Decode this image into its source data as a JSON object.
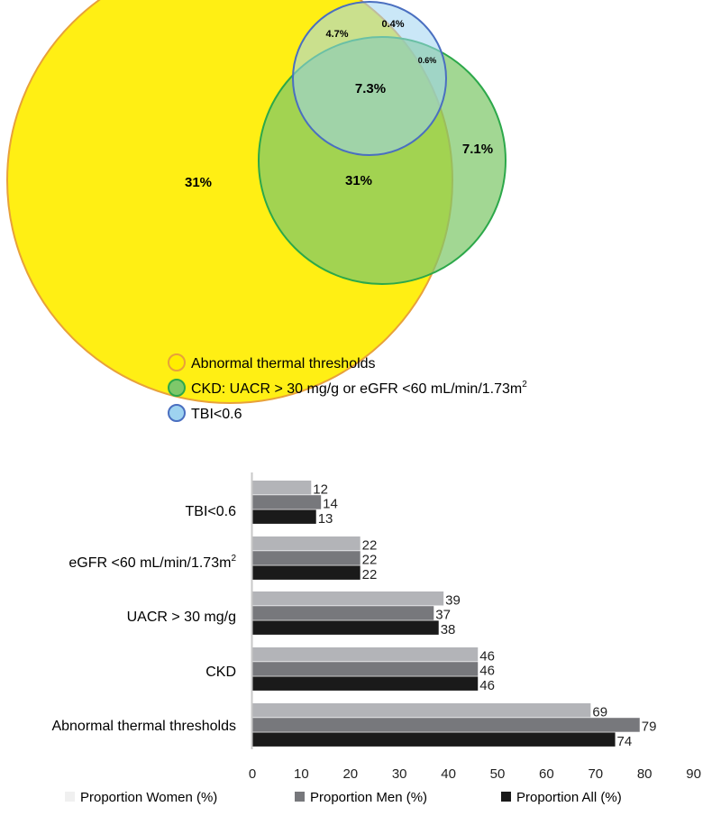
{
  "chart_data": [
    {
      "type": "venn",
      "sets": [
        {
          "name": "Abnormal thermal thresholds",
          "label": "Abnormal thermal thresholds",
          "color": "#ffee00",
          "stroke": "#e8a13a"
        },
        {
          "name": "CKD",
          "label": "CKD: UACR > 30 mg/g or eGFR <60 mL/min/1.73m",
          "label_sup": "2",
          "color": "#7ec86a",
          "stroke": "#2ca84a"
        },
        {
          "name": "TBI<0.6",
          "label": "TBI<0.6",
          "color": "#9ed3f0",
          "stroke": "#4a6fc0"
        }
      ],
      "regions": [
        {
          "sets": [
            "Abnormal thermal thresholds"
          ],
          "label": "31%"
        },
        {
          "sets": [
            "Abnormal thermal thresholds",
            "CKD"
          ],
          "label": "31%"
        },
        {
          "sets": [
            "CKD"
          ],
          "label": "7.1%"
        },
        {
          "sets": [
            "Abnormal thermal thresholds",
            "TBI<0.6"
          ],
          "label": "4.7%"
        },
        {
          "sets": [
            "TBI<0.6"
          ],
          "label": "0.4%"
        },
        {
          "sets": [
            "CKD",
            "TBI<0.6"
          ],
          "label": "0.6%"
        },
        {
          "sets": [
            "Abnormal thermal thresholds",
            "CKD",
            "TBI<0.6"
          ],
          "label": "7.3%"
        }
      ]
    },
    {
      "type": "bar",
      "orientation": "horizontal",
      "categories": [
        "TBI<0.6",
        "eGFR <60 mL/min/1.73m",
        "UACR > 30 mg/g",
        "CKD",
        "Abnormal thermal thresholds"
      ],
      "category_sup": [
        "",
        "2",
        "",
        "",
        ""
      ],
      "series": [
        {
          "name": "Proportion Women (%)",
          "values": [
            12,
            22,
            39,
            46,
            69
          ],
          "color": "#b3b4b8"
        },
        {
          "name": "Proportion Men (%)",
          "values": [
            14,
            22,
            37,
            46,
            79
          ],
          "color": "#77787c"
        },
        {
          "name": "Proportion All (%)",
          "values": [
            13,
            22,
            38,
            46,
            74
          ],
          "color": "#1a1a1a"
        }
      ],
      "xlim": [
        0,
        90
      ],
      "xticks": [
        0,
        10,
        20,
        30,
        40,
        50,
        60,
        70,
        80,
        90
      ],
      "legend_position": "bottom",
      "legend_swatches": [
        "#f0f0f0",
        "#77787c",
        "#1a1a1a"
      ],
      "grid": false
    }
  ]
}
